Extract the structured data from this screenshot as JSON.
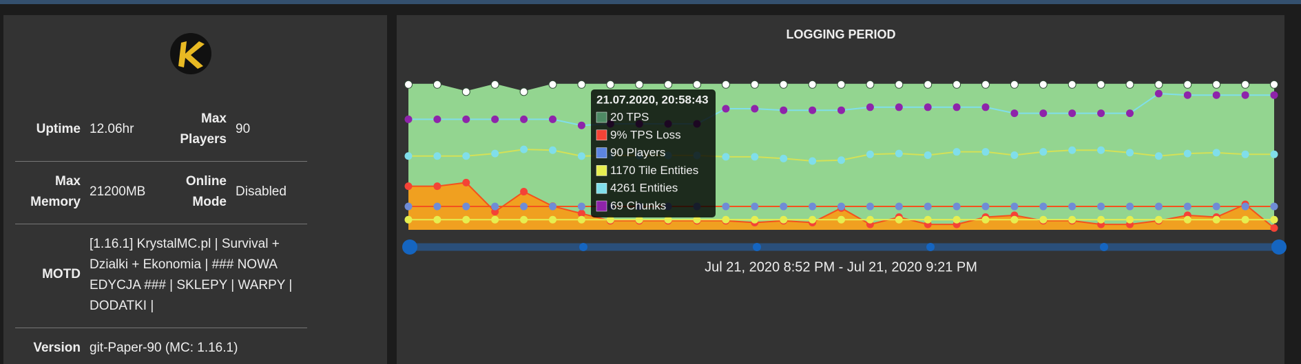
{
  "server_info": {
    "rows": [
      [
        {
          "label": "Uptime",
          "value": "12.06hr"
        },
        {
          "label": "Max Players",
          "value": "90"
        }
      ],
      [
        {
          "label": "Max Memory",
          "value": "21200MB"
        },
        {
          "label": "Online Mode",
          "value": "Disabled"
        }
      ],
      [
        {
          "label": "MOTD",
          "value": "[1.16.1] KrystalMC.pl | Survival + Dzialki + Ekonomia | ### NOWA EDYCJA ### | SKLEPY | WARPY | DODATKI |"
        }
      ],
      [
        {
          "label": "Version",
          "value": "git-Paper-90 (MC: 1.16.1)"
        }
      ]
    ]
  },
  "chart_data": {
    "type": "line",
    "title": "LOGGING PERIOD",
    "series": [
      {
        "color": "#93d590",
        "point_color": "#ffffff",
        "line_color": "#93d590",
        "fill": true,
        "ylim": [
          0,
          25
        ],
        "values": [
          20,
          20,
          19,
          20,
          19,
          20,
          20,
          20,
          20,
          20,
          20,
          20,
          20,
          20,
          20,
          20,
          20,
          20,
          20,
          20,
          20,
          20,
          20,
          20,
          20,
          20,
          20,
          20,
          20,
          20,
          20
        ]
      },
      {
        "color": "#f0a020",
        "point_color": "#f44336",
        "line_color": "#f4511e",
        "fill": true,
        "ylim": [
          0,
          100
        ],
        "values": [
          24,
          24,
          26,
          10,
          21,
          13,
          9,
          5,
          5,
          5,
          5,
          5,
          4,
          5,
          4,
          12,
          3,
          7,
          3,
          3,
          7,
          8,
          5,
          5,
          3,
          3,
          5,
          8,
          7,
          14,
          1
        ]
      },
      {
        "color": "#8e24aa",
        "point_color": "#8e24aa",
        "line_color": "#80deea",
        "fill": false,
        "ylim": [
          0,
          120
        ],
        "values": [
          73,
          73,
          73,
          73,
          73,
          73,
          69,
          70,
          70,
          70,
          70,
          80,
          80,
          79,
          79,
          79,
          81,
          81,
          81,
          81,
          81,
          77,
          77,
          77,
          77,
          77,
          90,
          89,
          89,
          89,
          89
        ]
      },
      {
        "color": "#80deea",
        "point_color": "#80deea",
        "line_color": "#d4e157",
        "fill": false,
        "ylim": [
          0,
          10500
        ],
        "values": [
          4267,
          4267,
          4267,
          4411,
          4650,
          4603,
          4261,
          4300,
          4300,
          4300,
          4300,
          4219,
          4219,
          4123,
          3979,
          4027,
          4363,
          4411,
          4315,
          4507,
          4507,
          4315,
          4507,
          4603,
          4603,
          4459,
          4267,
          4411,
          4459,
          4363,
          4363
        ]
      },
      {
        "color": "#5c85e0",
        "point_color": "#6f8cd6",
        "line_color": "#f4511e",
        "fill": false,
        "ylim": [
          0,
          700
        ],
        "values": [
          90,
          90,
          90,
          90,
          90,
          90,
          90,
          90,
          90,
          90,
          90,
          90,
          90,
          90,
          90,
          90,
          90,
          90,
          90,
          90,
          90,
          90,
          90,
          90,
          90,
          90,
          90,
          90,
          90,
          90,
          90
        ]
      },
      {
        "color": "#e6ee50",
        "point_color": "#e6ee50",
        "line_color": "#e6ee50",
        "fill": false,
        "ylim": [
          0,
          21000
        ],
        "values": [
          1170,
          1170,
          1170,
          1170,
          1170,
          1170,
          1170,
          1170,
          1170,
          1170,
          1170,
          1170,
          1170,
          1170,
          1170,
          1170,
          1170,
          1170,
          1170,
          1170,
          1170,
          1170,
          1170,
          1170,
          1170,
          1170,
          1170,
          1170,
          1170,
          1170,
          1170
        ]
      }
    ],
    "tooltip": {
      "title": "21.07.2020, 20:58:43",
      "items": [
        {
          "label": "20 TPS",
          "color": "#4e8a64"
        },
        {
          "label": "9% TPS Loss",
          "color": "#f44336"
        },
        {
          "label": "90 Players",
          "color": "#5c85e0"
        },
        {
          "label": "1170 Tile Entities",
          "color": "#e6ee50"
        },
        {
          "label": "4261 Entities",
          "color": "#80deea"
        },
        {
          "label": "69 Chunks",
          "color": "#8e24aa"
        }
      ]
    },
    "range_label": "Jul 21, 2020 8:52 PM - Jul 21, 2020 9:21 PM"
  }
}
